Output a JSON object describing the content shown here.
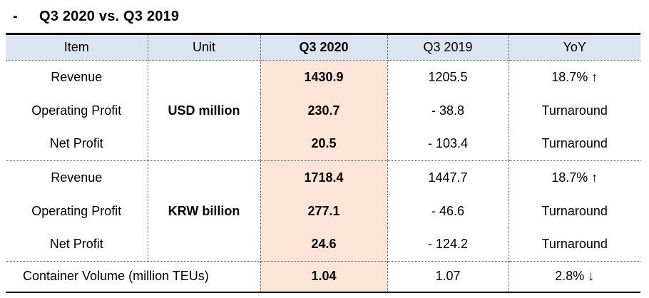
{
  "title": {
    "bullet": "-",
    "text": "Q3 2020 vs. Q3 2019"
  },
  "table": {
    "columns": [
      "Item",
      "Unit",
      "Q3 2020",
      "Q3 2019",
      "YoY"
    ],
    "groups": [
      {
        "unit": "USD million",
        "rows": [
          {
            "item": "Revenue",
            "q3_2020": "1430.9",
            "q3_2019": "1205.5",
            "yoy": "18.7% ↑"
          },
          {
            "item": "Operating Profit",
            "q3_2020": "230.7",
            "q3_2019": "- 38.8",
            "yoy": "Turnaround"
          },
          {
            "item": "Net Profit",
            "q3_2020": "20.5",
            "q3_2019": "- 103.4",
            "yoy": "Turnaround"
          }
        ]
      },
      {
        "unit": "KRW billion",
        "rows": [
          {
            "item": "Revenue",
            "q3_2020": "1718.4",
            "q3_2019": "1447.7",
            "yoy": "18.7% ↑"
          },
          {
            "item": "Operating Profit",
            "q3_2020": "277.1",
            "q3_2019": "- 46.6",
            "yoy": "Turnaround"
          },
          {
            "item": "Net Profit",
            "q3_2020": "24.6",
            "q3_2019": "- 124.2",
            "yoy": "Turnaround"
          }
        ]
      }
    ],
    "footer_row": {
      "item": "Container Volume (million TEUs)",
      "q3_2020": "1.04",
      "q3_2019": "1.07",
      "yoy": "2.8% ↓"
    },
    "colors": {
      "header_bg": "#dbe4f0",
      "highlight_bg": "#fce4d6",
      "border_heavy": "#000000",
      "border_dotted": "#555555"
    }
  }
}
